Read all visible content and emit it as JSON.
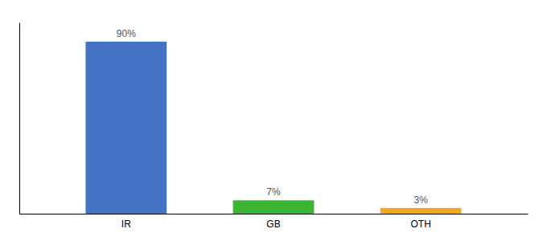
{
  "chart_data": {
    "type": "bar",
    "categories": [
      "IR",
      "GB",
      "OTH"
    ],
    "values": [
      90,
      7,
      3
    ],
    "value_labels": [
      "90%",
      "7%",
      "3%"
    ],
    "colors": [
      "#4472c4",
      "#3cb533",
      "#f5a623"
    ],
    "ylim": [
      0,
      100
    ],
    "data_labels": true,
    "tick_labels": "x"
  }
}
